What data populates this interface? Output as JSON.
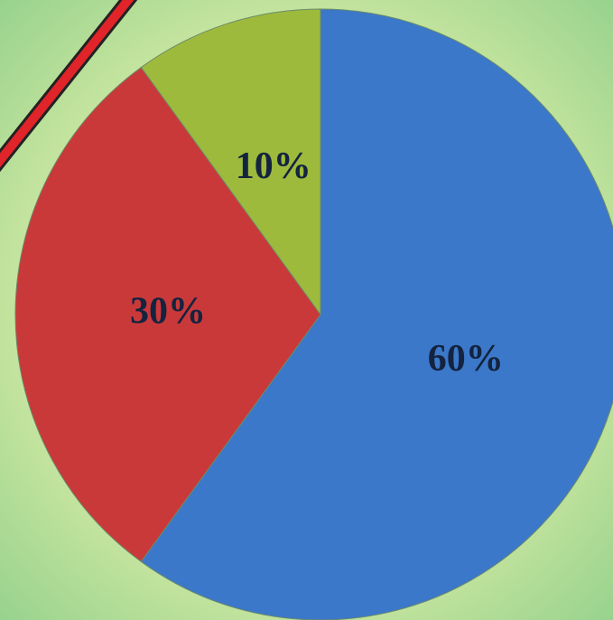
{
  "chart_data": {
    "type": "pie",
    "values": [
      60,
      30,
      10
    ],
    "value_labels": [
      "60%",
      "30%",
      "10%"
    ],
    "colors": [
      "#3b78c9",
      "#c9393a",
      "#9dba3c"
    ],
    "start_angle": 0,
    "direction": "clockwise"
  }
}
